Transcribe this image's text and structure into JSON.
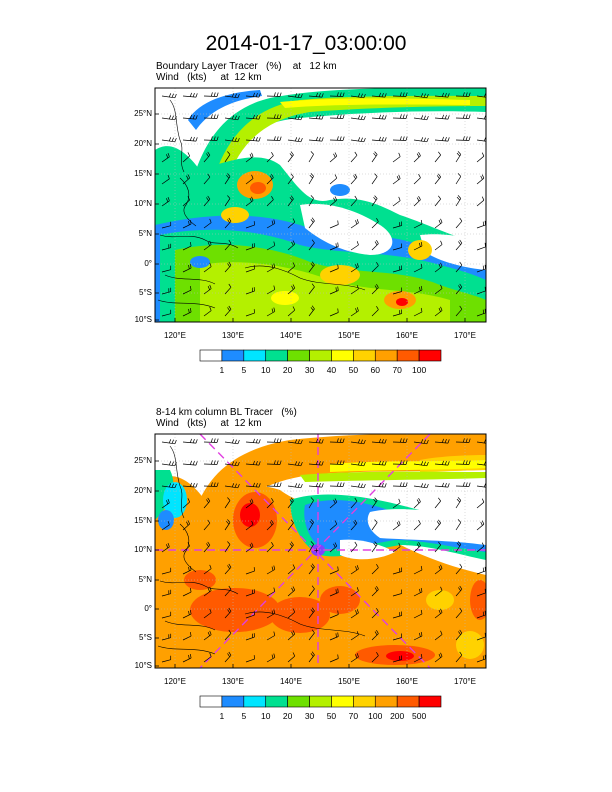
{
  "title": "2014-01-17_03:00:00",
  "panel1": {
    "title_line1": "Boundary Layer Tracer   (%)    at   12 km",
    "title_line2": "Wind   (kts)     at  12 km",
    "colorbar_labels": [
      "1",
      "5",
      "10",
      "20",
      "30",
      "40",
      "50",
      "60",
      "70",
      "100"
    ]
  },
  "panel2": {
    "title_line1": "8-14 km column BL Tracer   (%)",
    "title_line2": "Wind   (kts)     at  12 km",
    "colorbar_labels": [
      "1",
      "5",
      "10",
      "20",
      "30",
      "50",
      "70",
      "100",
      "200",
      "500"
    ]
  },
  "axes": {
    "lon_labels": [
      "120°E",
      "130°E",
      "140°E",
      "150°E",
      "160°E",
      "170°E"
    ],
    "lat_labels": [
      "25°N",
      "20°N",
      "15°N",
      "10°N",
      "5°N",
      "0°",
      "5°S",
      "10°S"
    ]
  },
  "colors": {
    "white": "#ffffff",
    "blue": "#1e8cff",
    "cyan": "#00e5ff",
    "teal": "#00e090",
    "green": "#6ee000",
    "lime": "#b4f000",
    "yellow": "#ffff00",
    "amber": "#ffd200",
    "orange": "#ffa000",
    "red_orange": "#ff5a00",
    "red": "#ff0000",
    "magenta": "#e040e0"
  }
}
